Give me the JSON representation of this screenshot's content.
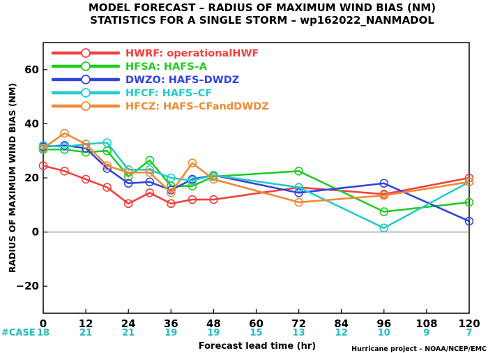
{
  "chart_data": {
    "type": "line",
    "title": "MODEL FORECAST – RADIUS OF MAXIMUM WIND BIAS (NM)",
    "subtitle": "STATISTICS FOR A SINGLE STORM – wp162022_NANMADOL",
    "xlabel": "Forecast lead time (hr)",
    "ylabel": "RADIUS OF MAXIMUM WIND BIAS (NM)",
    "xlim": [
      0,
      120
    ],
    "ylim": [
      -30,
      70
    ],
    "x_ticks": [
      "0",
      "12",
      "24",
      "36",
      "48",
      "60",
      "72",
      "84",
      "96",
      "108",
      "120"
    ],
    "y_ticks": [
      "−20",
      "0",
      "20",
      "40",
      "60"
    ],
    "grid": false,
    "legend_position": "top-left",
    "cases_label": "#CASE",
    "cases": [
      "18",
      "21",
      "21",
      "19",
      "19",
      "15",
      "13",
      "12",
      "10",
      "9",
      "7"
    ],
    "credit": "Hurricane project – NOAA/NCEP/EMC",
    "series": [
      {
        "key": "HWRF",
        "desc": "operationalHWF",
        "color": "#f04040",
        "points": [
          [
            0,
            24.5
          ],
          [
            6,
            22.5
          ],
          [
            12,
            19.5
          ],
          [
            18,
            16.5
          ],
          [
            24,
            10.5
          ],
          [
            30,
            14.5
          ],
          [
            36,
            10.5
          ],
          [
            42,
            12
          ],
          [
            48,
            12
          ],
          [
            72,
            16.5
          ],
          [
            96,
            14
          ],
          [
            120,
            20
          ]
        ]
      },
      {
        "key": "HFSA",
        "desc": "HAFS–A",
        "color": "#22cc22",
        "points": [
          [
            0,
            30.5
          ],
          [
            6,
            30.5
          ],
          [
            12,
            29.5
          ],
          [
            18,
            30
          ],
          [
            24,
            20.5
          ],
          [
            30,
            26.5
          ],
          [
            36,
            17
          ],
          [
            42,
            17
          ],
          [
            48,
            20.5
          ],
          [
            72,
            22.5
          ],
          [
            96,
            7.5
          ],
          [
            120,
            11
          ]
        ]
      },
      {
        "key": "DWZO",
        "desc": "HAFS–DWDZ",
        "color": "#3344dd",
        "points": [
          [
            0,
            31.5
          ],
          [
            6,
            32
          ],
          [
            12,
            31
          ],
          [
            18,
            23.5
          ],
          [
            24,
            18
          ],
          [
            30,
            18.5
          ],
          [
            36,
            15.5
          ],
          [
            42,
            19.5
          ],
          [
            48,
            21
          ],
          [
            72,
            14.5
          ],
          [
            96,
            18
          ],
          [
            120,
            4
          ]
        ]
      },
      {
        "key": "HFCF",
        "desc": "HAFS–CF",
        "color": "#22cccc",
        "points": [
          [
            0,
            32
          ],
          [
            6,
            31.5
          ],
          [
            12,
            32.5
          ],
          [
            18,
            33
          ],
          [
            24,
            23
          ],
          [
            30,
            23
          ],
          [
            36,
            20
          ],
          [
            42,
            19
          ],
          [
            48,
            21
          ],
          [
            72,
            16.5
          ],
          [
            96,
            1.5
          ],
          [
            120,
            18.5
          ]
        ]
      },
      {
        "key": "HFCZ",
        "desc": "HAFS–CFandDWDZ",
        "color": "#f08a33",
        "points": [
          [
            0,
            31
          ],
          [
            6,
            36.5
          ],
          [
            12,
            32.5
          ],
          [
            18,
            24.5
          ],
          [
            24,
            22
          ],
          [
            30,
            22
          ],
          [
            36,
            14.5
          ],
          [
            42,
            25.5
          ],
          [
            48,
            19.5
          ],
          [
            72,
            11
          ],
          [
            96,
            13.5
          ],
          [
            120,
            18.5
          ]
        ]
      }
    ]
  }
}
